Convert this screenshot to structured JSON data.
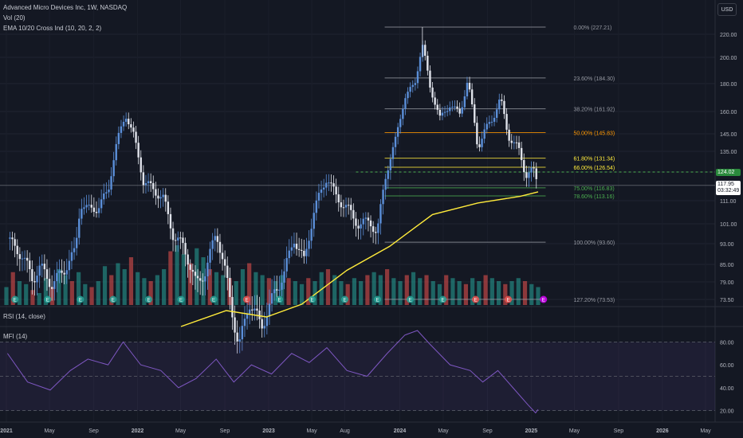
{
  "header": {
    "symbol_line": "Advanced Micro Devices Inc, 1W, NASDAQ",
    "indicator_vol": "Vol (20)",
    "indicator_ema": "EMA 10/20 Cross Ind (10, 20, 2, 2)",
    "currency": "USD"
  },
  "rsi_panel": {
    "label": "RSI (14, close)"
  },
  "mfi_panel": {
    "label": "MFI (14)"
  },
  "price_tags": {
    "last": "124.02",
    "current": "117.95",
    "countdown": "03:32:49"
  },
  "colors": {
    "background": "#141823",
    "up": "#5b8fd9",
    "down": "#e0e3eb",
    "vol_up": "#26a69a",
    "vol_down": "#ef5350",
    "ema": "#ffeb3b",
    "fib_gray": "#9598a1",
    "fib_orange": "#ff9800",
    "fib_yellow": "#ffeb3b",
    "fib_green": "#4caf50",
    "mfi_line": "#7e57c2",
    "current_line": "#4caf50"
  },
  "chart_data": [
    {
      "type": "line",
      "title": "Advanced Micro Devices Inc, 1W, NASDAQ",
      "y_ticks": [
        220.0,
        200.0,
        180.0,
        160.0,
        145.0,
        135.0,
        124.02,
        111.0,
        101.0,
        93.0,
        85.0,
        79.0,
        73.5
      ],
      "x_ticks": [
        "2021",
        "May",
        "Sep",
        "2022",
        "May",
        "Sep",
        "2023",
        "May",
        "Aug",
        "2024",
        "May",
        "Sep",
        "2025",
        "May",
        "Sep",
        "2026",
        "May"
      ],
      "fib_levels": [
        {
          "label": "0.00% (227.21)",
          "price": 227.21,
          "color": "gray"
        },
        {
          "label": "23.60% (184.30)",
          "price": 184.3,
          "color": "gray"
        },
        {
          "label": "38.20% (161.92)",
          "price": 161.92,
          "color": "gray"
        },
        {
          "label": "50.00% (145.83)",
          "price": 145.83,
          "color": "orange"
        },
        {
          "label": "61.80% (131.34)",
          "price": 131.34,
          "color": "yellow"
        },
        {
          "label": "66.00% (126.54)",
          "price": 126.54,
          "color": "yellow"
        },
        {
          "label": "75.00% (116.83)",
          "price": 116.83,
          "color": "green"
        },
        {
          "label": "78.60% (113.16)",
          "price": 113.16,
          "color": "green"
        },
        {
          "label": "100.00% (93.60)",
          "price": 93.6,
          "color": "gray"
        },
        {
          "label": "127.20% (73.53)",
          "price": 73.53,
          "color": "gray"
        }
      ],
      "price_series": {
        "name": "",
        "points": [
          [
            "2021-01-04",
            95
          ],
          [
            "2021-02-15",
            88
          ],
          [
            "2021-03-15",
            80
          ],
          [
            "2021-04-05",
            84
          ],
          [
            "2021-05-10",
            78
          ],
          [
            "2021-06-14",
            84
          ],
          [
            "2021-07-12",
            90
          ],
          [
            "2021-07-26",
            110
          ],
          [
            "2021-08-16",
            107
          ],
          [
            "2021-09-13",
            108
          ],
          [
            "2021-10-11",
            115
          ],
          [
            "2021-11-01",
            137
          ],
          [
            "2021-11-29",
            158
          ],
          [
            "2021-12-20",
            145
          ],
          [
            "2022-01-17",
            120
          ],
          [
            "2022-02-14",
            116
          ],
          [
            "2022-03-14",
            112
          ],
          [
            "2022-04-11",
            96
          ],
          [
            "2022-05-09",
            92
          ],
          [
            "2022-06-13",
            78
          ],
          [
            "2022-07-11",
            83
          ],
          [
            "2022-08-08",
            98
          ],
          [
            "2022-09-12",
            76
          ],
          [
            "2022-10-10",
            58
          ],
          [
            "2022-11-07",
            73
          ],
          [
            "2022-12-12",
            65
          ],
          [
            "2023-01-16",
            75
          ],
          [
            "2023-02-13",
            82
          ],
          [
            "2023-03-13",
            95
          ],
          [
            "2023-04-10",
            86
          ],
          [
            "2023-05-08",
            107
          ],
          [
            "2023-06-12",
            122
          ],
          [
            "2023-07-10",
            112
          ],
          [
            "2023-08-07",
            108
          ],
          [
            "2023-09-11",
            100
          ],
          [
            "2023-10-09",
            103
          ],
          [
            "2023-10-30",
            96
          ],
          [
            "2023-11-20",
            121
          ],
          [
            "2023-12-18",
            139
          ],
          [
            "2024-01-15",
            170
          ],
          [
            "2024-02-12",
            180
          ],
          [
            "2024-03-04",
            211
          ],
          [
            "2024-03-25",
            178
          ],
          [
            "2024-04-22",
            155
          ],
          [
            "2024-05-20",
            165
          ],
          [
            "2024-06-17",
            158
          ],
          [
            "2024-07-08",
            183
          ],
          [
            "2024-08-05",
            137
          ],
          [
            "2024-08-26",
            148
          ],
          [
            "2024-09-16",
            155
          ],
          [
            "2024-10-07",
            170
          ],
          [
            "2024-10-28",
            144
          ],
          [
            "2024-11-25",
            137
          ],
          [
            "2024-12-16",
            123
          ],
          [
            "2025-01-06",
            125
          ],
          [
            "2025-01-20",
            118
          ]
        ]
      },
      "ema_series": {
        "name": "",
        "points": [
          [
            "2022-05-02",
            65
          ],
          [
            "2022-09-05",
            70
          ],
          [
            "2022-12-26",
            68
          ],
          [
            "2023-04-03",
            72
          ],
          [
            "2023-08-07",
            83
          ],
          [
            "2023-12-04",
            92
          ],
          [
            "2024-04-01",
            105
          ],
          [
            "2024-08-05",
            110
          ],
          [
            "2024-12-02",
            113
          ],
          [
            "2025-01-20",
            115
          ]
        ]
      }
    },
    {
      "type": "bar",
      "title": "Vol (20)",
      "note": "relative weekly volume, 0-1",
      "values": [
        0.3,
        0.55,
        0.4,
        0.35,
        0.25,
        0.2,
        0.45,
        0.3,
        0.6,
        0.5,
        0.4,
        0.55,
        0.35,
        0.3,
        0.4,
        0.65,
        0.5,
        0.7,
        0.6,
        0.8,
        0.55,
        0.45,
        0.4,
        0.5,
        0.6,
        0.9,
        1.0,
        0.85,
        0.7,
        0.95,
        0.8,
        0.6,
        0.55,
        0.5,
        0.45,
        0.4,
        0.6,
        0.7,
        0.55,
        0.5,
        0.45,
        0.4,
        0.5,
        0.45,
        0.4,
        0.35,
        0.45,
        0.4,
        0.55,
        0.6,
        0.5,
        0.4,
        0.35,
        0.45,
        0.4,
        0.5,
        0.55,
        0.5,
        0.6,
        0.45,
        0.4,
        0.5,
        0.55,
        0.45,
        0.5,
        0.4,
        0.35,
        0.5,
        0.45,
        0.4,
        0.35,
        0.45,
        0.4,
        0.5,
        0.45,
        0.4,
        0.35,
        0.4,
        0.45,
        0.4,
        0.35,
        0.3
      ]
    },
    {
      "type": "line",
      "title": "MFI (14)",
      "y_ticks": [
        80.0,
        60.0,
        40.0,
        20.0
      ],
      "ylim": [
        10,
        90
      ],
      "series": [
        {
          "name": "",
          "points": [
            [
              "2021-01-04",
              70
            ],
            [
              "2021-03-01",
              45
            ],
            [
              "2021-05-03",
              38
            ],
            [
              "2021-06-28",
              55
            ],
            [
              "2021-08-16",
              65
            ],
            [
              "2021-10-11",
              60
            ],
            [
              "2021-11-22",
              80
            ],
            [
              "2022-01-10",
              60
            ],
            [
              "2022-03-07",
              55
            ],
            [
              "2022-04-25",
              40
            ],
            [
              "2022-06-13",
              48
            ],
            [
              "2022-08-08",
              65
            ],
            [
              "2022-09-26",
              45
            ],
            [
              "2022-11-14",
              60
            ],
            [
              "2023-01-09",
              52
            ],
            [
              "2023-03-06",
              70
            ],
            [
              "2023-04-24",
              62
            ],
            [
              "2023-06-12",
              75
            ],
            [
              "2023-08-07",
              55
            ],
            [
              "2023-10-02",
              50
            ],
            [
              "2023-11-27",
              70
            ],
            [
              "2024-01-15",
              86
            ],
            [
              "2024-02-19",
              90
            ],
            [
              "2024-03-25",
              78
            ],
            [
              "2024-05-20",
              60
            ],
            [
              "2024-07-15",
              55
            ],
            [
              "2024-08-19",
              45
            ],
            [
              "2024-09-30",
              55
            ],
            [
              "2024-11-11",
              40
            ],
            [
              "2024-12-23",
              25
            ],
            [
              "2025-01-13",
              18
            ],
            [
              "2025-01-20",
              21
            ]
          ]
        }
      ]
    }
  ]
}
